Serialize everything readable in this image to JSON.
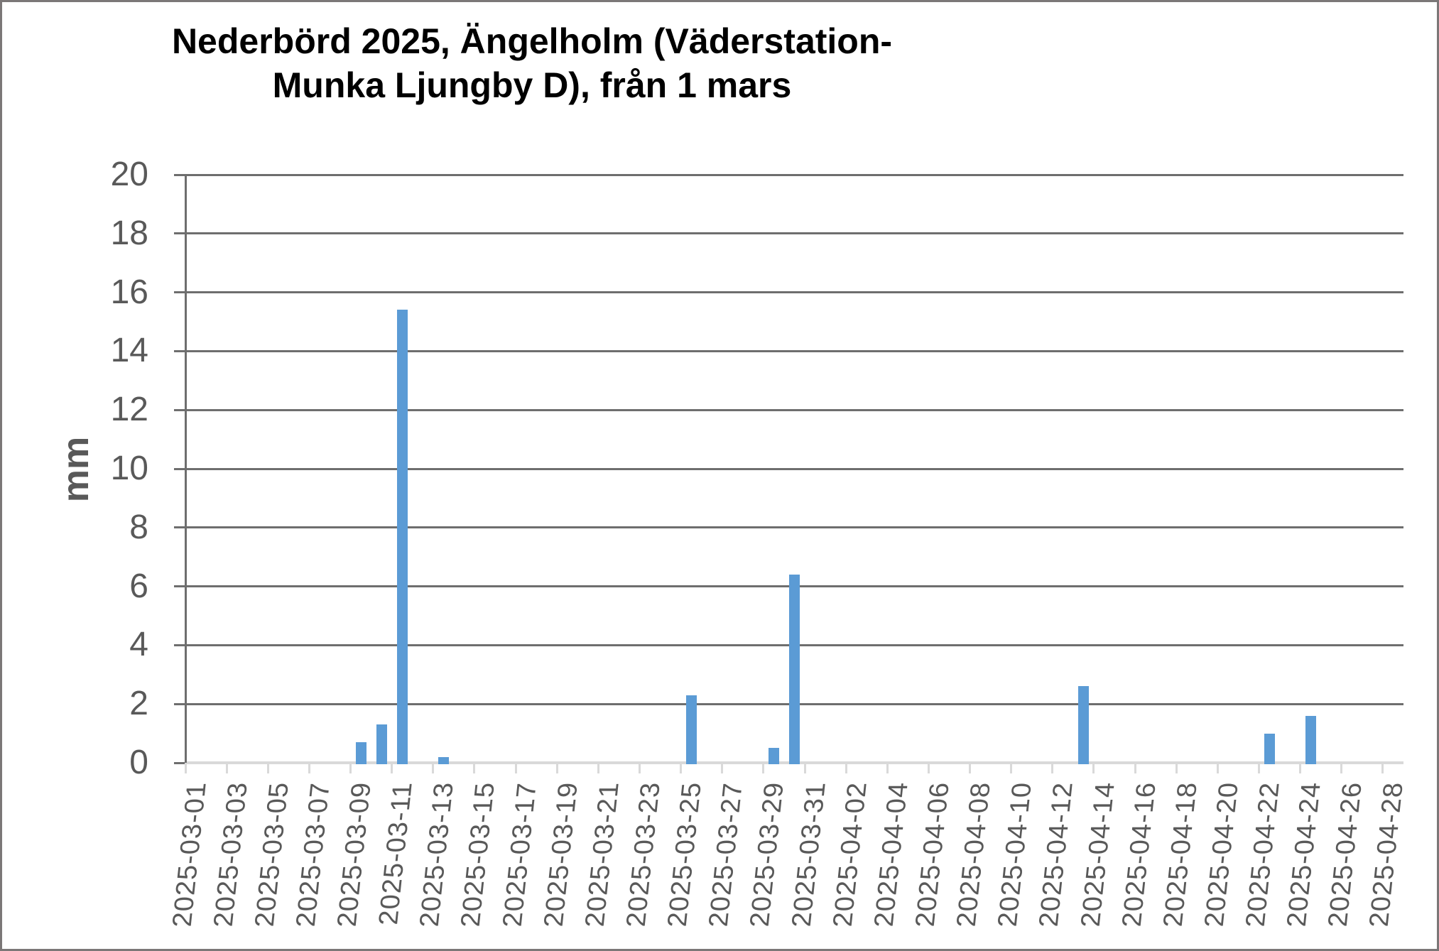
{
  "ui": {
    "title_lines": [
      "Nederbörd 2025, Ängelholm (Väderstation-",
      "Munka Ljungby D), från 1 mars"
    ]
  },
  "chart_data": {
    "type": "bar",
    "title": "Nederbörd 2025, Ängelholm (Väderstation-Munka Ljungby D), från 1 mars",
    "xlabel": "",
    "ylabel": "mm",
    "ylim": [
      0,
      20
    ],
    "ytick_step": 2,
    "ytick_labels": [
      "0",
      "2",
      "4",
      "6",
      "8",
      "10",
      "12",
      "14",
      "16",
      "18",
      "20"
    ],
    "x_start_date": "2025-03-01",
    "x_end_date": "2025-04-28",
    "n_days": 59,
    "xtick_label_interval_days": 2,
    "xtick_labels": [
      "2025-03-01",
      "2025-03-03",
      "2025-03-05",
      "2025-03-07",
      "2025-03-09",
      "2025-03-11",
      "2025-03-13",
      "2025-03-15",
      "2025-03-17",
      "2025-03-19",
      "2025-03-21",
      "2025-03-23",
      "2025-03-25",
      "2025-03-27",
      "2025-03-29",
      "2025-03-31",
      "2025-04-02",
      "2025-04-04",
      "2025-04-06",
      "2025-04-08",
      "2025-04-10",
      "2025-04-12",
      "2025-04-14",
      "2025-04-16",
      "2025-04-18",
      "2025-04-20",
      "2025-04-22",
      "2025-04-24",
      "2025-04-26",
      "2025-04-28"
    ],
    "points": [
      {
        "date": "2025-03-09",
        "value": 0.7
      },
      {
        "date": "2025-03-10",
        "value": 1.3
      },
      {
        "date": "2025-03-11",
        "value": 15.4
      },
      {
        "date": "2025-03-13",
        "value": 0.2
      },
      {
        "date": "2025-03-25",
        "value": 2.3
      },
      {
        "date": "2025-03-29",
        "value": 0.5
      },
      {
        "date": "2025-03-30",
        "value": 6.4
      },
      {
        "date": "2025-04-13",
        "value": 2.6
      },
      {
        "date": "2025-04-22",
        "value": 1.0
      },
      {
        "date": "2025-04-24",
        "value": 1.6
      }
    ],
    "grid": "horizontal",
    "legend": "none",
    "colors": {
      "bar": "#5b9bd5",
      "gridline": "#6e6e6e",
      "category_axis": "#d9d9d9",
      "text": "#595959",
      "title_text": "#000000",
      "image_border": "#7b7777"
    }
  }
}
